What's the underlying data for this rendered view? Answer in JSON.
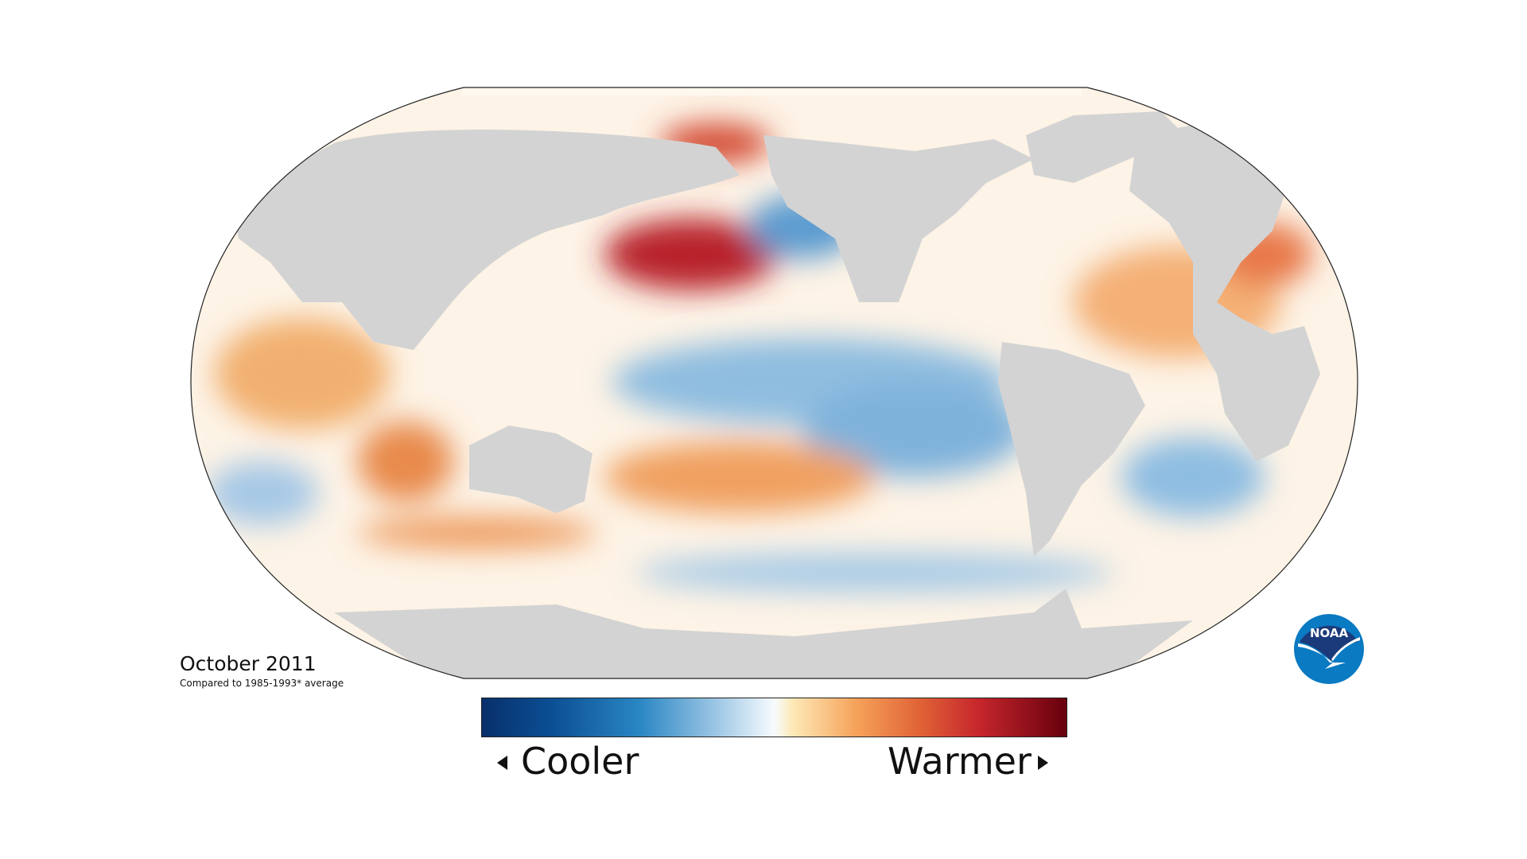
{
  "title": "October 2011",
  "subtitle": "Compared to 1985-1993* average",
  "legend": {
    "cooler_label": "Cooler",
    "warmer_label": "Warmer",
    "colors": [
      "#08306b",
      "#2a86c4",
      "#f7fbff",
      "#f6a25a",
      "#c6262c",
      "#67000d"
    ]
  },
  "map": {
    "projection": "Robinson",
    "land_color": "#d3d3d3",
    "ocean_neutral_color": "#fdf6ec"
  },
  "logo": {
    "text": "NOAA",
    "colors": [
      "#1b3a7a",
      "#0a7ac2"
    ]
  }
}
